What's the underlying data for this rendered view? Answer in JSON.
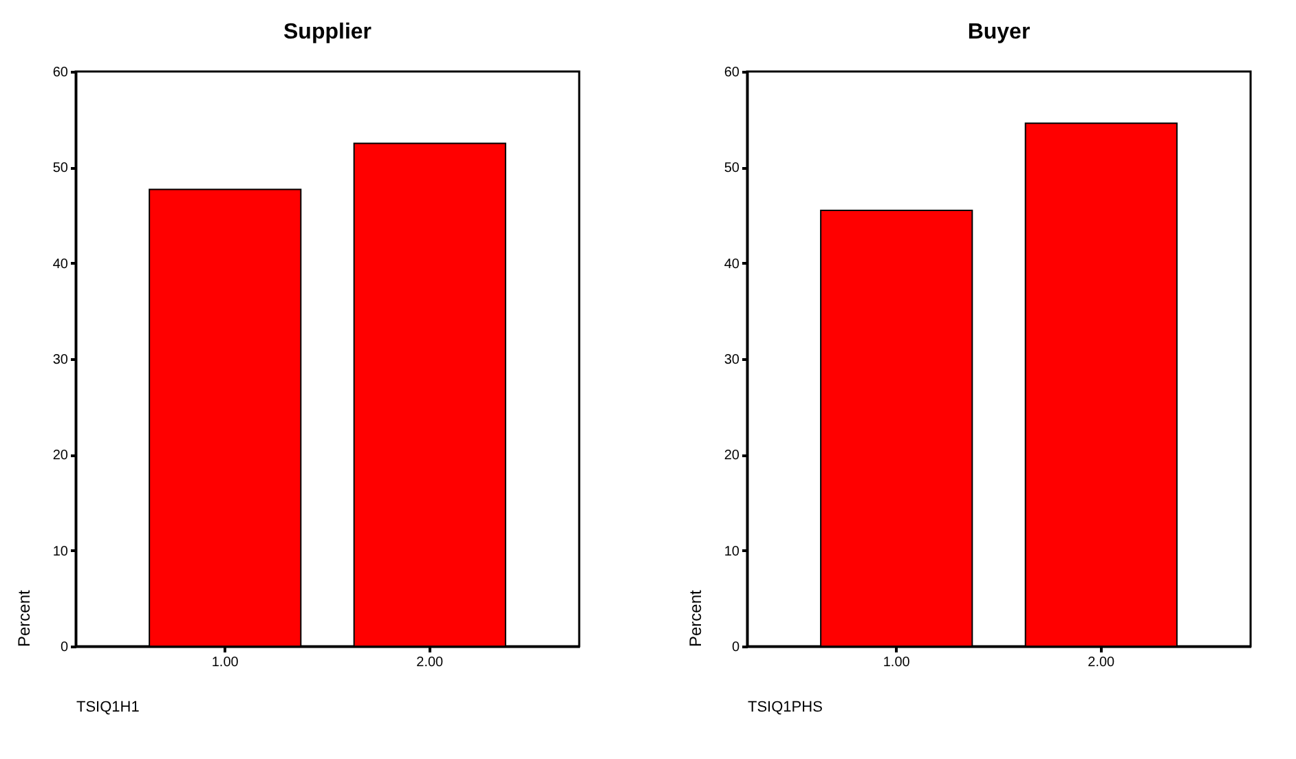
{
  "chart_data": [
    {
      "type": "bar",
      "title": "Supplier",
      "xlabel": "TSIQ1H1",
      "ylabel": "Percent",
      "categories": [
        "1.00",
        "2.00"
      ],
      "values": [
        47.7,
        52.5
      ],
      "color": "#ff0000",
      "ylim": [
        0,
        60
      ],
      "yticks": [
        0,
        10,
        20,
        30,
        40,
        50,
        60
      ],
      "grid": false
    },
    {
      "type": "bar",
      "title": "Buyer",
      "xlabel": "TSIQ1PHS",
      "ylabel": "Percent",
      "categories": [
        "1.00",
        "2.00"
      ],
      "values": [
        45.5,
        54.6
      ],
      "color": "#ff0000",
      "ylim": [
        0,
        60
      ],
      "yticks": [
        0,
        10,
        20,
        30,
        40,
        50,
        60
      ],
      "grid": false
    }
  ]
}
